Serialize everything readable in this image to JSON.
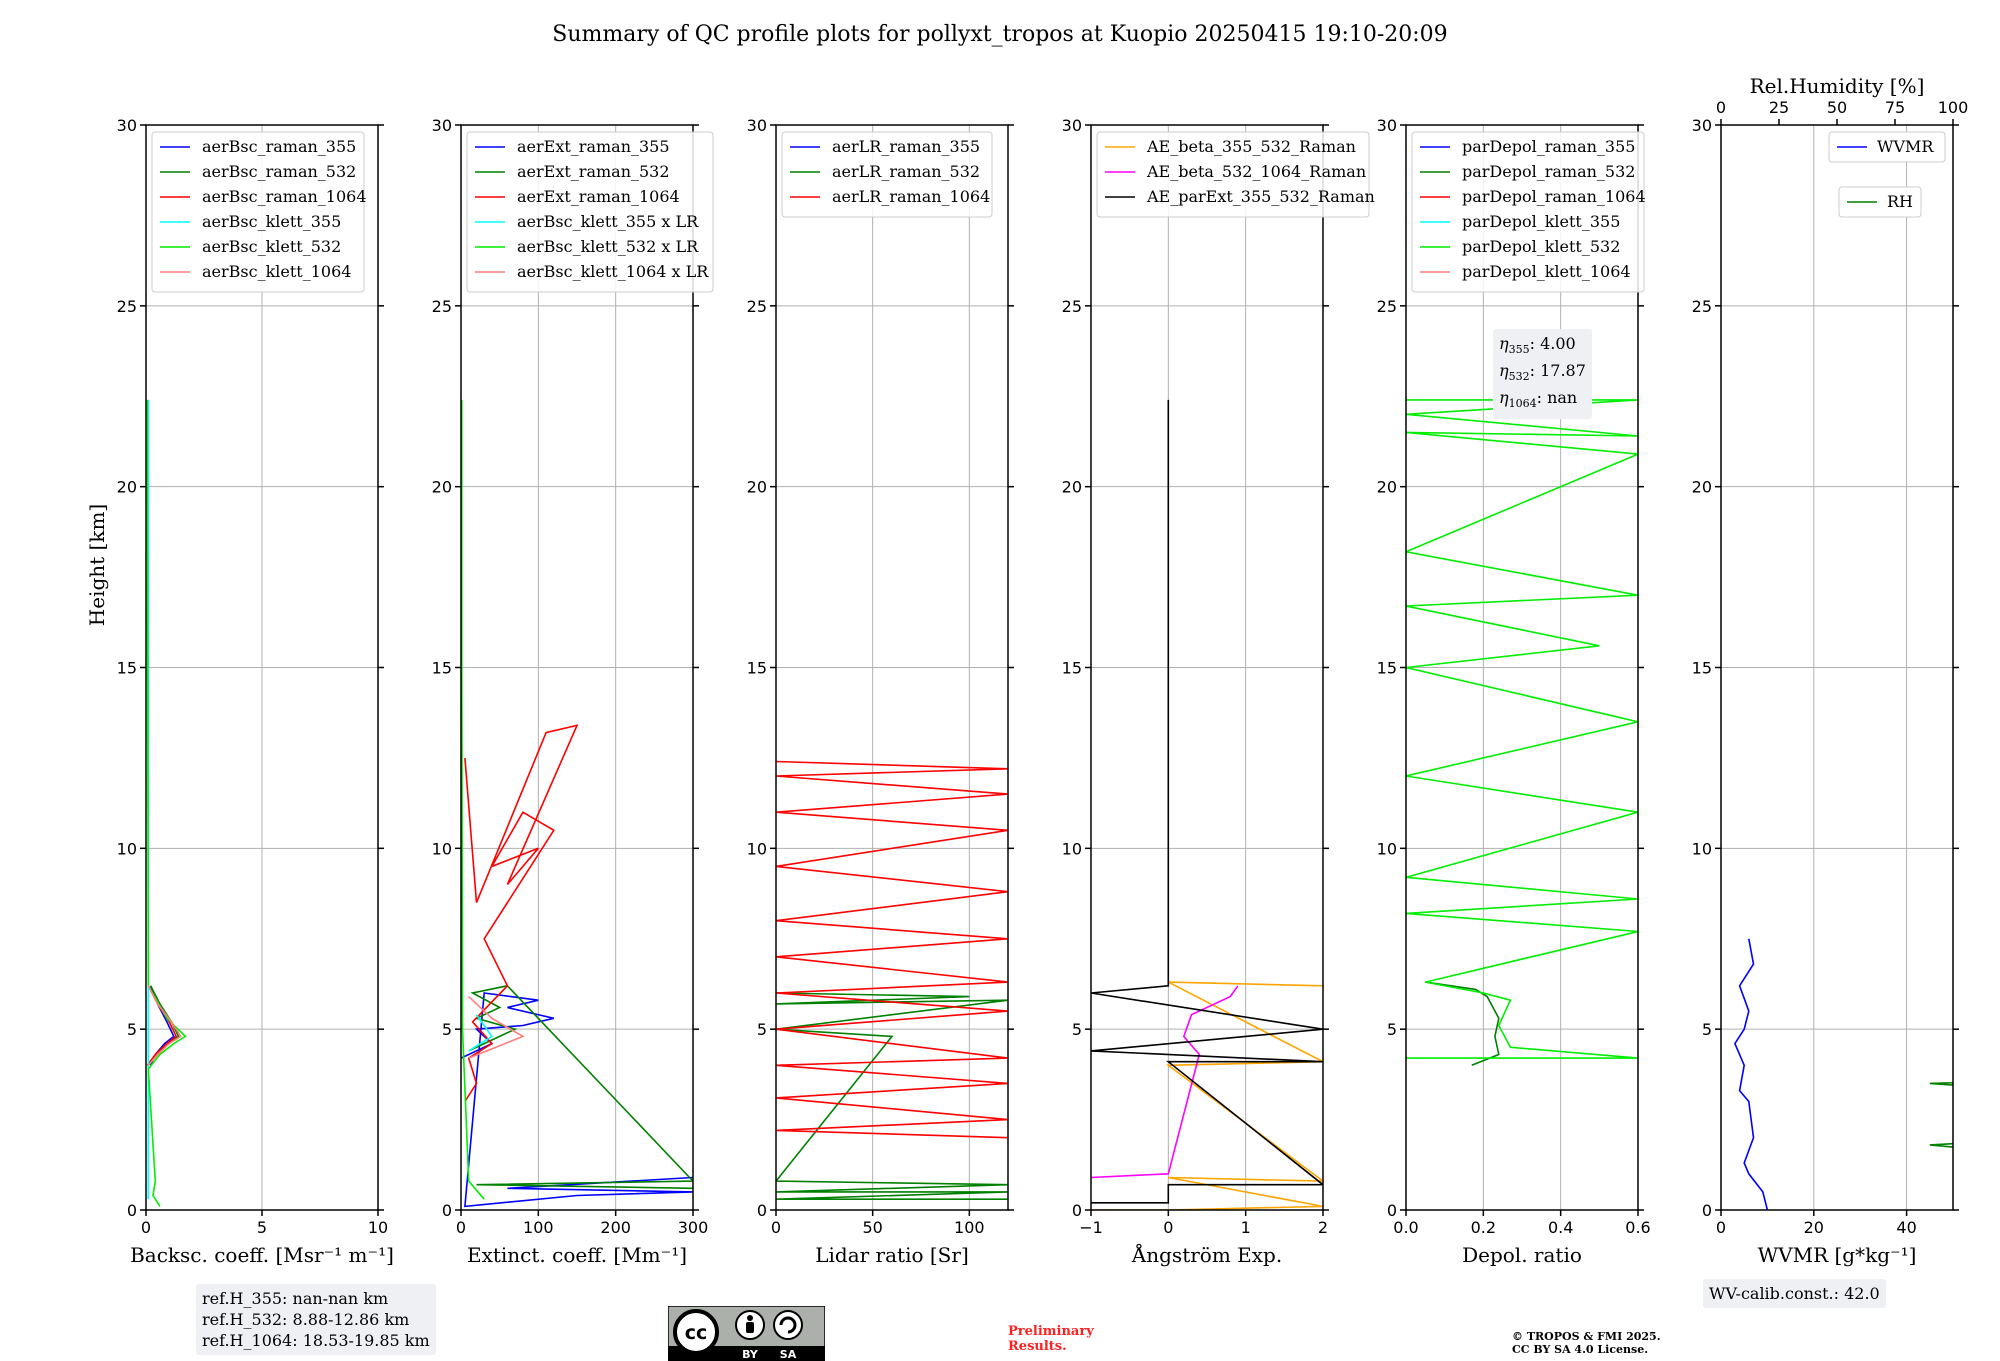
{
  "title": "Summary of QC profile plots for pollyxt_tropos at Kuopio 20250415 19:10-20:09",
  "ylabel": "Height [km]",
  "chart_data": [
    {
      "type": "line",
      "panel": "backscatter",
      "xlabel": "Backsc. coeff. [Msr⁻¹ m⁻¹]",
      "xlim": [
        0,
        10
      ],
      "xticks": [
        "0",
        "5",
        "10"
      ],
      "ylim": [
        0,
        30
      ],
      "yticks": [
        "0",
        "5",
        "10",
        "15",
        "20",
        "25",
        "30"
      ],
      "grid": true,
      "legend": "top-left",
      "series": [
        {
          "name": "aerBsc_raman_355",
          "color": "#0000ff",
          "x": [
            0.2,
            0.4,
            0.8,
            1.2,
            0.9,
            0.5,
            0.2
          ],
          "y": [
            4.0,
            4.3,
            4.6,
            4.8,
            5.2,
            5.7,
            6.2
          ]
        },
        {
          "name": "aerBsc_raman_532",
          "color": "#008000",
          "x": [
            0.1,
            0.5,
            1.0,
            1.4,
            1.1,
            0.6,
            0.2
          ],
          "y": [
            4.0,
            4.3,
            4.6,
            4.8,
            5.2,
            5.7,
            6.2
          ]
        },
        {
          "name": "aerBsc_raman_1064",
          "color": "#ff0000",
          "x": [
            0.05,
            0.4,
            0.9,
            1.3,
            1.0,
            0.5,
            0.1
          ],
          "y": [
            4.0,
            4.3,
            4.6,
            4.8,
            5.2,
            5.7,
            6.2
          ]
        },
        {
          "name": "aerBsc_klett_355",
          "color": "#00ffff",
          "x": [
            0.1,
            0.1,
            0.1
          ],
          "y": [
            0.3,
            10.0,
            22.4
          ]
        },
        {
          "name": "aerBsc_klett_532",
          "color": "#00ee00",
          "x": [
            0.6,
            0.3,
            0.4,
            0.1,
            0.6,
            1.2,
            1.7,
            0.9,
            0.1,
            0.05
          ],
          "y": [
            0.1,
            0.4,
            0.8,
            3.9,
            4.3,
            4.6,
            4.8,
            5.3,
            6.2,
            22.4
          ]
        },
        {
          "name": "aerBsc_klett_1064",
          "color": "#ff7f7f",
          "x": [
            0.1,
            0.5,
            1.0,
            1.5,
            1.1,
            0.5,
            0.1
          ],
          "y": [
            4.0,
            4.3,
            4.6,
            4.8,
            5.2,
            5.7,
            6.2
          ]
        }
      ]
    },
    {
      "type": "line",
      "panel": "extinction",
      "xlabel": "Extinct. coeff. [Mm⁻¹]",
      "xlim": [
        0,
        300
      ],
      "xticks": [
        "0",
        "100",
        "200",
        "300"
      ],
      "ylim": [
        0,
        30
      ],
      "yticks": [
        "0",
        "5",
        "10",
        "15",
        "20",
        "25",
        "30"
      ],
      "grid": true,
      "legend": "top-left",
      "series": [
        {
          "name": "aerExt_raman_355",
          "color": "#0000ff",
          "x": [
            0,
            40,
            20,
            80,
            120,
            60,
            100,
            30,
            5,
            150,
            300,
            60,
            300
          ],
          "y": [
            4.2,
            4.6,
            5.0,
            5.1,
            5.3,
            5.6,
            5.8,
            6.0,
            0.1,
            0.4,
            0.5,
            0.6,
            0.9
          ]
        },
        {
          "name": "aerExt_raman_532",
          "color": "#008000",
          "x": [
            10,
            40,
            70,
            20,
            50,
            15,
            60,
            300,
            20,
            300
          ],
          "y": [
            4.4,
            4.7,
            5.0,
            5.3,
            5.6,
            6.0,
            6.2,
            0.8,
            0.7,
            0.6
          ]
        },
        {
          "name": "aerExt_raman_1064",
          "color": "#ff0000",
          "x": [
            5,
            20,
            10,
            40,
            15,
            60,
            30,
            120,
            80,
            40,
            100,
            60,
            150,
            110,
            20,
            5
          ],
          "y": [
            3.0,
            3.5,
            4.2,
            4.6,
            5.2,
            6.2,
            7.5,
            10.5,
            11.0,
            9.5,
            10.0,
            9.0,
            13.4,
            13.2,
            8.5,
            12.5
          ]
        },
        {
          "name": "aerBsc_klett_355 x LR",
          "color": "#00ffff",
          "x": [
            10,
            40,
            20
          ],
          "y": [
            4.4,
            4.8,
            5.4
          ]
        },
        {
          "name": "aerBsc_klett_532 x LR",
          "color": "#00ee00",
          "x": [
            30,
            10,
            2,
            1,
            1
          ],
          "y": [
            0.3,
            0.8,
            5.0,
            15.0,
            22.4
          ]
        },
        {
          "name": "aerBsc_klett_1064 x LR",
          "color": "#ff7f7f",
          "x": [
            10,
            80,
            40,
            10
          ],
          "y": [
            4.2,
            4.8,
            5.3,
            5.9
          ]
        }
      ]
    },
    {
      "type": "line",
      "panel": "lidar_ratio",
      "xlabel": "Lidar ratio [Sr]",
      "xlim": [
        0,
        120
      ],
      "xticks": [
        "0",
        "50",
        "100"
      ],
      "ylim": [
        0,
        30
      ],
      "yticks": [
        "0",
        "5",
        "10",
        "15",
        "20",
        "25",
        "30"
      ],
      "grid": true,
      "legend": "top-left",
      "series": [
        {
          "name": "aerLR_raman_355",
          "color": "#0000ff",
          "x": [],
          "y": []
        },
        {
          "name": "aerLR_raman_532",
          "color": "#008000",
          "x": [
            120,
            0,
            120,
            0,
            120,
            0,
            60,
            0,
            120,
            0,
            100,
            0
          ],
          "y": [
            0.3,
            0.3,
            0.5,
            0.5,
            0.7,
            0.8,
            4.8,
            5.0,
            5.8,
            5.7,
            5.9,
            6.0
          ]
        },
        {
          "name": "aerLR_raman_1064",
          "color": "#ff0000",
          "x": [
            120,
            0,
            120,
            0,
            120,
            0,
            120,
            0,
            120,
            0,
            120,
            0,
            120,
            0,
            120,
            0,
            120,
            0,
            120,
            0,
            120,
            0
          ],
          "y": [
            2.0,
            2.2,
            2.5,
            3.1,
            3.5,
            4.0,
            4.2,
            5.0,
            5.5,
            6.0,
            6.3,
            7.0,
            7.5,
            8.0,
            8.8,
            9.5,
            10.5,
            11.0,
            11.5,
            12.0,
            12.2,
            12.4
          ]
        }
      ]
    },
    {
      "type": "line",
      "panel": "angstrom",
      "xlabel": "Ångström Exp.",
      "xlim": [
        -1,
        2
      ],
      "xticks": [
        "−1",
        "0",
        "1",
        "2"
      ],
      "ylim": [
        0,
        30
      ],
      "yticks": [
        "0",
        "5",
        "10",
        "15",
        "20",
        "25",
        "30"
      ],
      "grid": true,
      "legend": "top-left",
      "series": [
        {
          "name": "AE_beta_355_532_Raman",
          "color": "#ffa500",
          "x": [
            -1,
            0,
            2,
            0,
            2,
            0,
            2,
            0,
            2
          ],
          "y": [
            0.0,
            0.0,
            0.1,
            0.9,
            0.8,
            4.0,
            4.1,
            6.3,
            6.2
          ]
        },
        {
          "name": "AE_beta_532_1064_Raman",
          "color": "#ff00ff",
          "x": [
            -1,
            0,
            0.4,
            0.2,
            0.3,
            0.8,
            0.9
          ],
          "y": [
            0.9,
            1.0,
            4.3,
            4.8,
            5.4,
            5.9,
            6.2
          ]
        },
        {
          "name": "AE_parExt_355_532_Raman",
          "color": "#000000",
          "x": [
            -1,
            0,
            0,
            2,
            0,
            2,
            -1,
            2,
            -1,
            0,
            0,
            0
          ],
          "y": [
            0.2,
            0.2,
            0.7,
            0.7,
            4.1,
            4.1,
            4.4,
            5.0,
            6.0,
            6.2,
            6.4,
            22.4
          ]
        }
      ]
    },
    {
      "type": "line",
      "panel": "depolarization",
      "xlabel": "Depol. ratio",
      "xlim": [
        0,
        0.6
      ],
      "xticks": [
        "0.0",
        "0.2",
        "0.4",
        "0.6"
      ],
      "ylim": [
        0,
        30
      ],
      "yticks": [
        "0",
        "5",
        "10",
        "15",
        "20",
        "25",
        "30"
      ],
      "grid": true,
      "legend": "top-left",
      "series": [
        {
          "name": "parDepol_raman_355",
          "color": "#0000ff",
          "x": [],
          "y": []
        },
        {
          "name": "parDepol_raman_532",
          "color": "#008000",
          "x": [
            0.17,
            0.24,
            0.23,
            0.24,
            0.21,
            0.18,
            0.05
          ],
          "y": [
            4.0,
            4.3,
            4.8,
            5.3,
            5.9,
            6.1,
            6.3
          ]
        },
        {
          "name": "parDepol_raman_1064",
          "color": "#ff0000",
          "x": [],
          "y": []
        },
        {
          "name": "parDepol_klett_355",
          "color": "#00ffff",
          "x": [],
          "y": []
        },
        {
          "name": "parDepol_klett_532",
          "color": "#00ee00",
          "x": [
            0.0,
            0.6,
            0.27,
            0.24,
            0.27,
            0.2,
            0.05,
            0.6,
            0.0,
            0.6,
            0.0,
            0.6,
            0.0,
            0.6,
            0.0,
            0.5,
            0.0,
            0.6,
            0.0,
            0.6,
            0.0,
            0.6,
            0.0,
            0.6,
            0.0
          ],
          "y": [
            4.2,
            4.2,
            4.5,
            5.1,
            5.8,
            6.0,
            6.3,
            7.7,
            8.2,
            8.6,
            9.2,
            11.0,
            12.0,
            13.5,
            15.0,
            15.6,
            16.7,
            17.0,
            18.2,
            20.9,
            21.5,
            21.4,
            22.0,
            22.4,
            22.4
          ]
        },
        {
          "name": "parDepol_klett_1064",
          "color": "#ff7f7f",
          "x": [],
          "y": []
        }
      ]
    },
    {
      "type": "line",
      "panel": "water_vapor",
      "xlabel": "WVMR [g*kg⁻¹]",
      "x2label": "Rel.Humidity [%]",
      "xlim": [
        0,
        50
      ],
      "xticks": [
        "0",
        "20",
        "40"
      ],
      "x2lim": [
        0,
        100
      ],
      "x2ticks": [
        "0",
        "25",
        "50",
        "75",
        "100"
      ],
      "ylim": [
        0,
        30
      ],
      "yticks": [
        "0",
        "5",
        "10",
        "15",
        "20",
        "25",
        "30"
      ],
      "grid": true,
      "legend": "top-right",
      "series": [
        {
          "name": "WVMR",
          "color": "#0000ff",
          "x": [
            10,
            9,
            6,
            5,
            7,
            6,
            4,
            5,
            3,
            5,
            6,
            4,
            7,
            6
          ],
          "y": [
            0.0,
            0.5,
            1.0,
            1.3,
            2.0,
            3.0,
            3.3,
            4.0,
            4.6,
            5.0,
            5.5,
            6.2,
            6.8,
            7.5
          ]
        },
        {
          "name": "RH",
          "color": "#008000",
          "x": [
            100,
            70,
            45,
            90,
            55,
            100,
            45,
            100,
            60,
            100,
            75,
            100
          ],
          "y": [
            1.3,
            1.5,
            1.8,
            2.1,
            2.5,
            3.0,
            3.5,
            3.7,
            4.1,
            4.5,
            4.8,
            4.9
          ]
        }
      ]
    }
  ],
  "annotations": {
    "etas": [
      "4.00",
      "17.87",
      "nan"
    ],
    "ref_heights": [
      "ref.H_355: nan-nan km",
      "ref.H_532: 8.88-12.86 km",
      "ref.H_1064: 18.53-19.85 km"
    ],
    "wv_calib": "WV-calib.const.: 42.0",
    "preliminary": [
      "Preliminary",
      "Results."
    ],
    "copyright": [
      "© TROPOS & FMI 2025.",
      "CC BY SA 4.0 License."
    ],
    "license_badge": {
      "cc": "cc",
      "by": "BY",
      "sa": "SA"
    }
  }
}
